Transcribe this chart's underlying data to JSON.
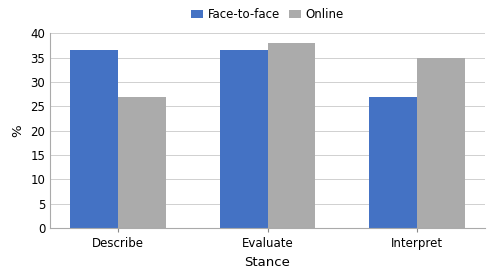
{
  "categories": [
    "Describe",
    "Evaluate",
    "Interpret"
  ],
  "face_to_face": [
    36.5,
    36.5,
    27.0
  ],
  "online": [
    27.0,
    38.0,
    35.0
  ],
  "bar_color_f2f": "#4472C4",
  "bar_color_online": "#ABABAB",
  "legend_labels": [
    "Face-to-face",
    "Online"
  ],
  "xlabel": "Stance",
  "ylabel": "%",
  "ylim": [
    0,
    40
  ],
  "yticks": [
    0,
    5,
    10,
    15,
    20,
    25,
    30,
    35,
    40
  ],
  "bar_width": 0.32,
  "label_fontsize": 9.5,
  "tick_fontsize": 8.5,
  "legend_fontsize": 8.5,
  "figure_width": 5.0,
  "figure_height": 2.78,
  "dpi": 100
}
